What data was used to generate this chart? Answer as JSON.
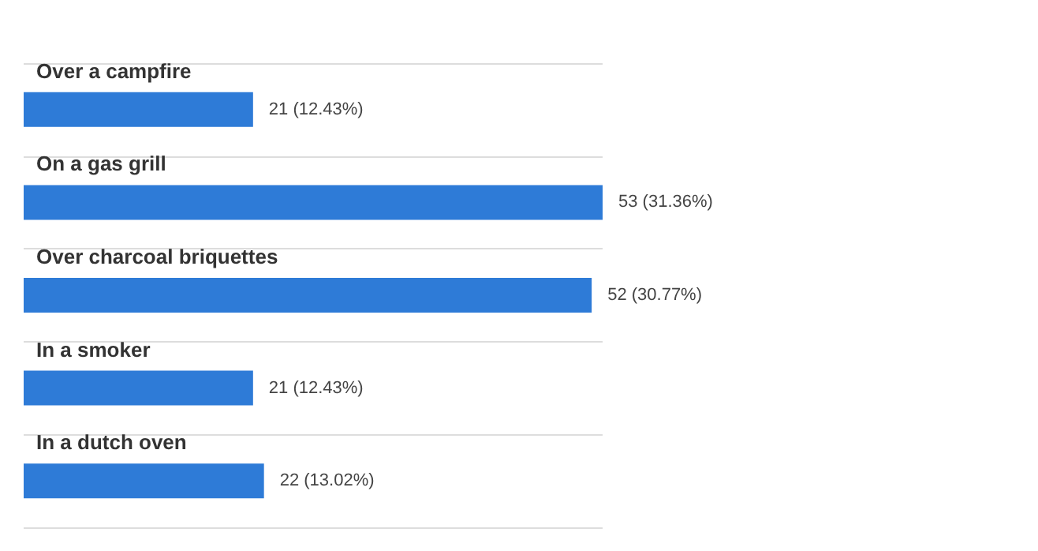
{
  "chart_data": {
    "type": "bar",
    "orientation": "horizontal",
    "categories": [
      "Over a campfire",
      "On a gas grill",
      "Over charcoal briquettes",
      "In a smoker",
      "In a dutch oven"
    ],
    "values": [
      21,
      53,
      52,
      21,
      22
    ],
    "value_labels": [
      "21 (12.43%)",
      "53 (31.36%)",
      "52 (30.77%)",
      "21 (12.43%)",
      "22 (13.02%)"
    ],
    "color": "#2e7bd7",
    "grid": "y"
  }
}
